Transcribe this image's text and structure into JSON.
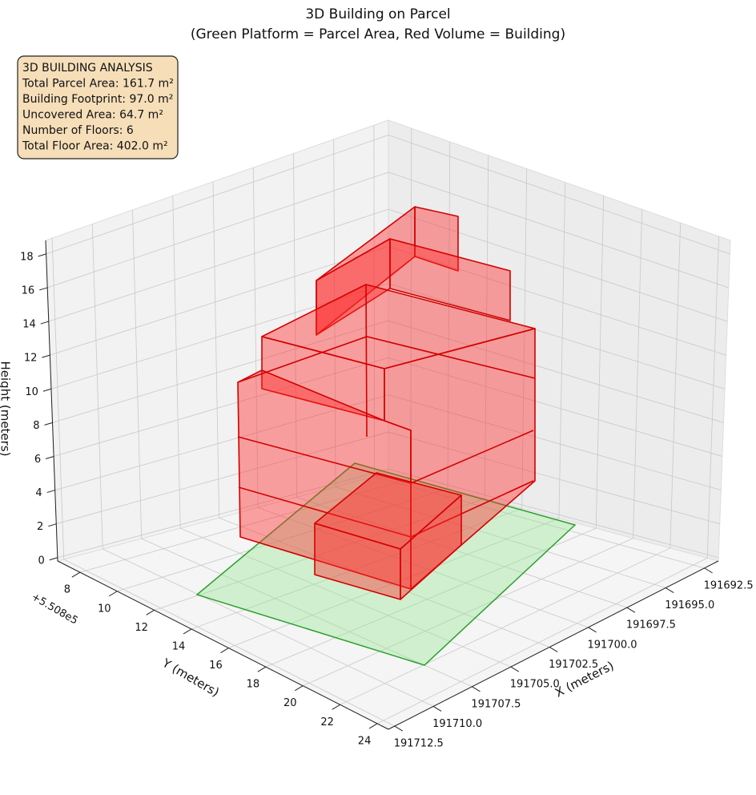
{
  "chart_data": {
    "type": "bar3d",
    "title": "3D Building on Parcel",
    "subtitle": "(Green Platform = Parcel Area, Red Volume = Building)",
    "annotation": [
      "3D BUILDING ANALYSIS",
      "Total Parcel Area: 161.7 m²",
      "Building Footprint: 97.0 m²",
      "Uncovered Area: 64.7 m²",
      "Number of Floors: 6",
      "Total Floor Area: 402.0 m²"
    ],
    "xlabel": "X (meters)",
    "ylabel": "Y (meters)",
    "zlabel": "Height (meters)",
    "y_offset_label": "+5.508e5",
    "xlim": [
      191691.6,
      191712.9
    ],
    "xticks": [
      191692.5,
      {
        "value": 191695,
        "label": "191695.0"
      },
      191697.5,
      {
        "value": 191700,
        "label": "191700.0"
      },
      191702.5,
      {
        "value": 191705,
        "label": "191705.0"
      },
      191707.5,
      {
        "value": 191710,
        "label": "191710.0"
      },
      191712.5
    ],
    "ylim": [
      6.8,
      24.6
    ],
    "yticks": [
      8,
      10,
      12,
      14,
      16,
      18,
      20,
      22,
      24
    ],
    "zlim": [
      -0.2,
      18.8
    ],
    "zticks": [
      0,
      2,
      4,
      6,
      8,
      10,
      12,
      14,
      16,
      18
    ],
    "grid": true
  }
}
